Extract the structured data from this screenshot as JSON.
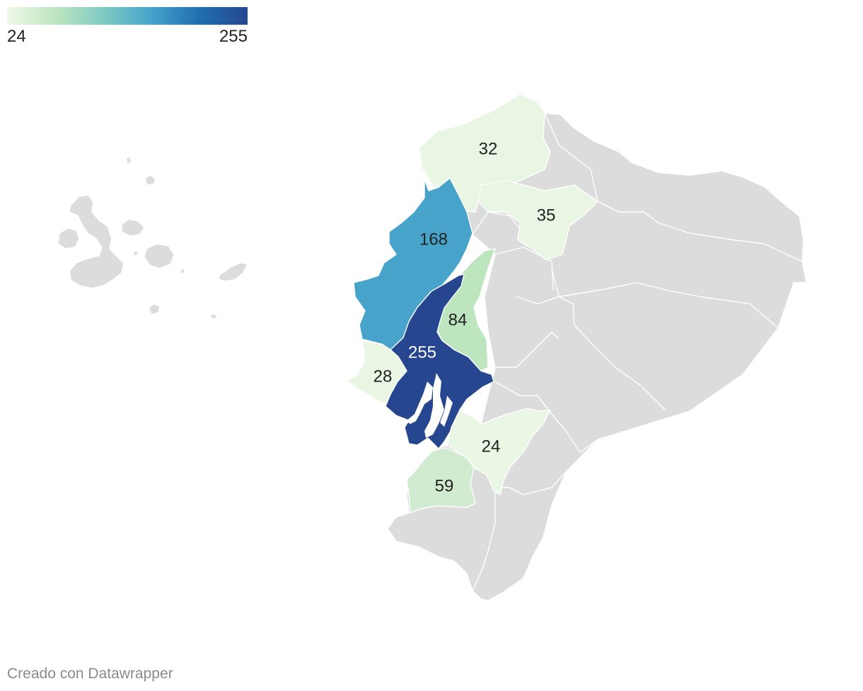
{
  "legend": {
    "min_label": "24",
    "max_label": "255",
    "gradient": [
      "#f0f8e8",
      "#bfe5c0",
      "#7fcbc4",
      "#45a3cb",
      "#1f6fb0",
      "#26478f"
    ]
  },
  "colors": {
    "no_data": "#dcdcdc",
    "scale_min": "#e9f6e3",
    "scale_max": "#26478f",
    "border": "#ffffff"
  },
  "map_labels": {
    "esmeraldas": "32",
    "imbabura": "35",
    "manabi": "168",
    "los_rios": "84",
    "guayas": "255",
    "santa_elena": "28",
    "azuay": "24",
    "el_oro": "59"
  },
  "credit": "Creado con Datawrapper"
}
